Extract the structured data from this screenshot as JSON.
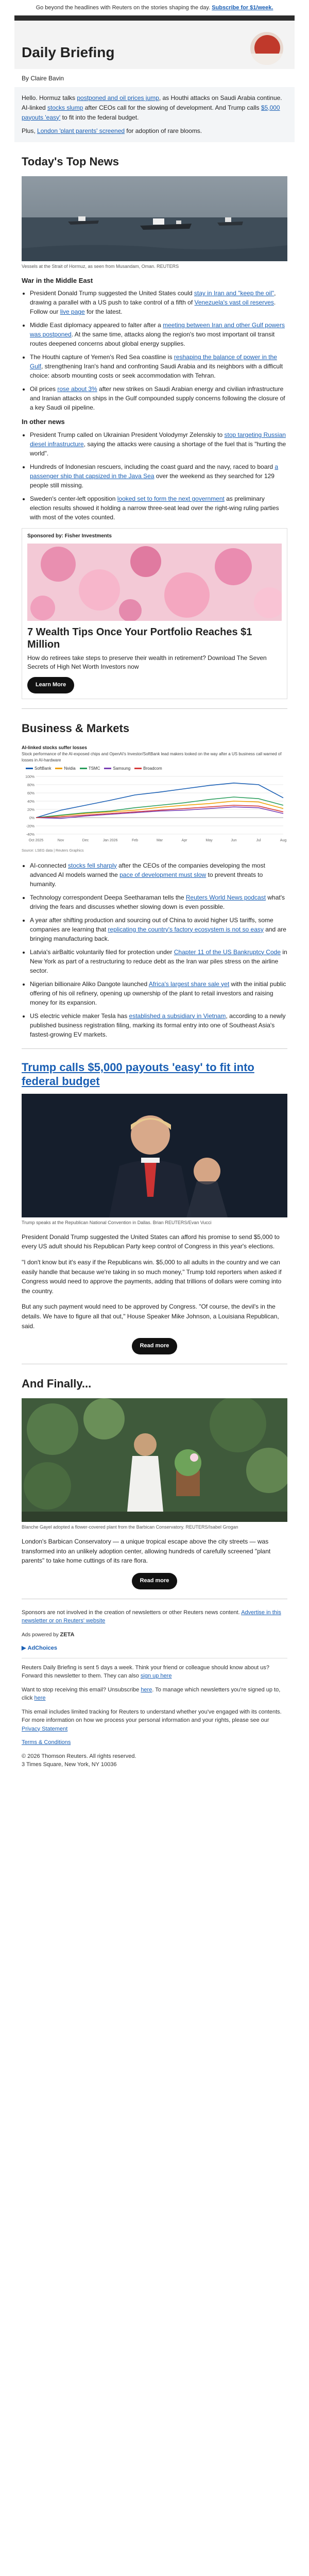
{
  "preheader": {
    "text": "Go beyond the headlines with Reuters on the stories shaping the day. ",
    "link": "Subscribe for $1/week."
  },
  "header": {
    "title": "Daily Briefing"
  },
  "byline": "By Claire Bavin",
  "intro": {
    "p1_a": "Hello. Hormuz talks ",
    "p1_link1": "postponed and oil prices jump",
    "p1_b": ", as Houthi attacks on Saudi Arabia continue. AI-linked ",
    "p1_link2": "stocks slump",
    "p1_c": " after CEOs call for the slowing of development. And Trump calls ",
    "p1_link3": "$5,000 payouts 'easy'",
    "p1_d": " to fit into the federal budget.",
    "p2_a": "Plus, ",
    "p2_link": "London 'plant parents' screened",
    "p2_b": " for adoption of rare blooms."
  },
  "top_news": {
    "heading": "Today's Top News",
    "caption": "Vessels at the Strait of Hormuz, as seen from Musandam, Oman. REUTERS",
    "sub1": "War in the Middle East",
    "mideast": [
      {
        "a": "President Donald Trump suggested the United States could ",
        "link": "stay in Iran and \"keep the oil\"",
        "b": ", drawing a parallel with a US push to take control of a fifth of ",
        "link2": "Venezuela's vast oil reserves",
        "c": ". Follow our ",
        "link3": "live page",
        "d": " for the latest."
      },
      {
        "a": "Middle East diplomacy appeared to falter after a ",
        "link": "meeting between Iran and other Gulf powers was postponed",
        "b": ". At the same time, attacks along the region's two most important oil transit routes deepened concerns about global energy supplies."
      },
      {
        "a": "The Houthi capture of Yemen's Red Sea coastline is ",
        "link": "reshaping the balance of power in the Gulf",
        "b": ", strengthening Iran's hand and confronting Saudi Arabia and its neighbors with a difficult choice: absorb mounting costs or seek accommodation with Tehran."
      },
      {
        "a": "Oil prices ",
        "link": "rose about 3%",
        "b": " after new strikes on Saudi Arabian energy and civilian infrastructure and Iranian attacks on ships in the Gulf compounded supply concerns following the closure of a key Saudi oil pipeline."
      }
    ],
    "sub2": "In other news",
    "other": [
      {
        "a": "President Trump called on Ukrainian President Volodymyr Zelenskiy to ",
        "link": "stop targeting Russian diesel infrastructure",
        "b": ", saying the attacks were causing a shortage of the fuel that is \"hurting the world\"."
      },
      {
        "a": "Hundreds of Indonesian rescuers, including the coast guard and the navy, raced to board ",
        "link": "a passenger ship that capsized in the Java Sea",
        "b": " over the weekend as they searched for 129 people still missing."
      },
      {
        "a": "Sweden's center-left opposition ",
        "link": "looked set to form the next government",
        "b": " as preliminary election results showed it holding a narrow three-seat lead over the right-wing ruling parties with most of the votes counted."
      }
    ]
  },
  "ad1": {
    "sponsor": "Sponsored by: Fisher Investments",
    "title": "7 Wealth Tips Once Your Portfolio Reaches $1 Million",
    "body": "How do retirees take steps to preserve their wealth in retirement? Download The Seven Secrets of High Net Worth Investors now",
    "button": "Learn More"
  },
  "business": {
    "heading": "Business & Markets",
    "chart_title": "AI-linked stocks suffer losses",
    "chart_sub": "Stock performance of the AI-exposed chips and OpenAI's Investor/SoftBank lead makers looked on the way after a US business call warned of losses in AI-hardware",
    "source": "Source: LSEG data | Reuters Graphics",
    "bullets": [
      {
        "a": "AI-connected ",
        "link": "stocks fell sharply",
        "b": " after the CEOs of the companies developing the most advanced AI models warned the ",
        "link2": "pace of development must slow",
        "c": " to prevent threats to humanity."
      },
      {
        "a": "Technology correspondent Deepa Seetharaman tells the ",
        "link": "Reuters World News podcast",
        "b": " what's driving the fears and discusses whether slowing down is even possible."
      },
      {
        "a": "A year after shifting production and sourcing out of China to avoid higher US tariffs, some companies are learning that ",
        "link": "replicating the country's factory ecosystem is not so easy",
        "b": " and are bringing manufacturing back."
      },
      {
        "a": "Latvia's airBaltic voluntarily filed for protection under ",
        "link": "Chapter 11 of the US Bankruptcy Code",
        "b": " in New York as part of a restructuring to reduce debt as the Iran war piles stress on the airline sector."
      },
      {
        "a": "Nigerian billionaire Aliko Dangote launched ",
        "link": "Africa's largest share sale yet",
        "b": " with the initial public offering of his oil refinery, opening up ownership of the plant to retail investors and raising money for its expansion."
      },
      {
        "a": "US electric vehicle maker Tesla has ",
        "link": "established a subsidiary in Vietnam",
        "b": ", according to a newly published business registration filing, marking its formal entry into one of Southeast Asia's fastest-growing EV markets."
      }
    ]
  },
  "chart_data": {
    "type": "line",
    "title": "AI-linked stocks suffer losses",
    "x": [
      "Oct 2025",
      "Nov",
      "Dec",
      "Jan 2026",
      "Feb",
      "Mar",
      "Apr",
      "May",
      "Jun",
      "Jul",
      "Aug"
    ],
    "ylim": [
      -40,
      100
    ],
    "series": [
      {
        "name": "SoftBank",
        "color": "#1a5fb4",
        "values": [
          0,
          18,
          30,
          42,
          55,
          62,
          70,
          78,
          84,
          80,
          48
        ]
      },
      {
        "name": "Nvidia",
        "color": "#f0a000",
        "values": [
          0,
          5,
          10,
          14,
          18,
          25,
          30,
          34,
          40,
          38,
          22
        ]
      },
      {
        "name": "TSMC",
        "color": "#2a9d5c",
        "values": [
          0,
          6,
          12,
          16,
          24,
          30,
          36,
          44,
          50,
          46,
          30
        ]
      },
      {
        "name": "Samsung",
        "color": "#7a3fb4",
        "values": [
          0,
          -2,
          4,
          8,
          12,
          16,
          18,
          22,
          26,
          24,
          10
        ]
      },
      {
        "name": "Broadcom",
        "color": "#d63b3b",
        "values": [
          0,
          2,
          6,
          10,
          14,
          18,
          22,
          26,
          30,
          28,
          14
        ]
      }
    ]
  },
  "story": {
    "headline": "Trump calls $5,000 payouts 'easy' to fit into federal budget",
    "caption": "Trump speaks at the Republican National Convention in Dallas. Brian REUTERS/Evan Vucci",
    "p1": "President Donald Trump suggested the United States can afford his promise to send $5,000 to every US adult should his Republican Party keep control of Congress in this year's elections.",
    "p2": "\"I don't know but it's easy if the Republicans win. $5,000 to all adults in the country and we can easily handle that because we're taking in so much money,\" Trump told reporters when asked if Congress would need to approve the payments, adding that trillions of dollars were coming into the country.",
    "p3": "But any such payment would need to be approved by Congress. \"Of course, the devil's in the details. We have to figure all that out,\" House Speaker Mike Johnson, a Louisiana Republican, said.",
    "button": "Read more"
  },
  "finally": {
    "heading": "And Finally...",
    "caption": "Blanche Gayel adopted a flower-covered plant from the Barbican Conservatory. REUTERS/Isabel Grogan",
    "p1": "London's Barbican Conservatory — a unique tropical escape above the city streets — was transformed into an unlikely adoption center, allowing hundreds of carefully screened \"plant parents\" to take home cuttings of its rare flora.",
    "button": "Read more"
  },
  "footer": {
    "p1_a": "Sponsors are not involved in the creation of newsletters or other Reuters news content. ",
    "p1_link": "Advertise in this newsletter or on Reuters' website",
    "adby_a": "Ads powered by ",
    "adby_b": "ZETA",
    "adchoices": "AdChoices",
    "p2_a": "Reuters Daily Briefing is sent 5 days a week. Think your friend or colleague should know about us? Forward this newsletter to them. They can also ",
    "p2_link": "sign up here",
    "p3_a": "Want to stop receiving this email? Unsubscribe ",
    "p3_link1": "here",
    "p3_b": ". To manage which newsletters you're signed up to, click ",
    "p3_link2": "here",
    "p4_a": "This email includes limited tracking for Reuters to understand whether you've engaged with its contents. For more information on how we process your personal information and your rights, please see our ",
    "p4_link": "Privacy Statement",
    "terms": "Terms & Conditions",
    "copy": "© 2026 Thomson Reuters. All rights reserved.",
    "addr": "3 Times Square, New York, NY 10036"
  }
}
